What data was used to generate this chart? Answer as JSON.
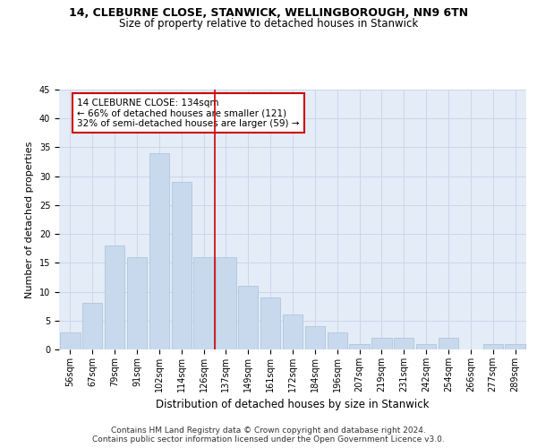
{
  "title_line1": "14, CLEBURNE CLOSE, STANWICK, WELLINGBOROUGH, NN9 6TN",
  "title_line2": "Size of property relative to detached houses in Stanwick",
  "xlabel": "Distribution of detached houses by size in Stanwick",
  "ylabel": "Number of detached properties",
  "categories": [
    "56sqm",
    "67sqm",
    "79sqm",
    "91sqm",
    "102sqm",
    "114sqm",
    "126sqm",
    "137sqm",
    "149sqm",
    "161sqm",
    "172sqm",
    "184sqm",
    "196sqm",
    "207sqm",
    "219sqm",
    "231sqm",
    "242sqm",
    "254sqm",
    "266sqm",
    "277sqm",
    "289sqm"
  ],
  "values": [
    3,
    8,
    18,
    16,
    34,
    29,
    16,
    16,
    11,
    9,
    6,
    4,
    3,
    1,
    2,
    2,
    1,
    2,
    0,
    1,
    1
  ],
  "bar_color": "#c8d9ed",
  "bar_edgecolor": "#a8c0d8",
  "vline_x": 6.5,
  "vline_color": "#cc0000",
  "annotation_text": "14 CLEBURNE CLOSE: 134sqm\n← 66% of detached houses are smaller (121)\n32% of semi-detached houses are larger (59) →",
  "annotation_box_edgecolor": "#cc0000",
  "annotation_box_facecolor": "#ffffff",
  "ylim": [
    0,
    45
  ],
  "yticks": [
    0,
    5,
    10,
    15,
    20,
    25,
    30,
    35,
    40,
    45
  ],
  "grid_color": "#ccd6e8",
  "bg_color": "#e4ecf7",
  "footer_text": "Contains HM Land Registry data © Crown copyright and database right 2024.\nContains public sector information licensed under the Open Government Licence v3.0.",
  "title_fontsize": 9,
  "subtitle_fontsize": 8.5,
  "xlabel_fontsize": 8.5,
  "ylabel_fontsize": 8,
  "tick_fontsize": 7,
  "annotation_fontsize": 7.5,
  "footer_fontsize": 6.5
}
